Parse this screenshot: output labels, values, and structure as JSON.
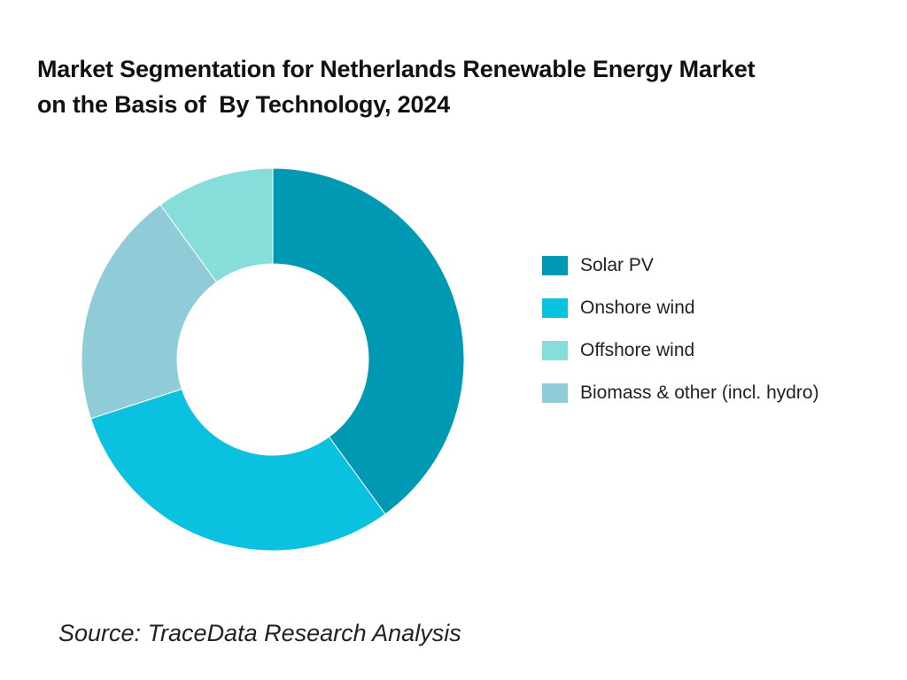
{
  "title_lines": [
    "Market Segmentation for Netherlands Renewable Energy Market",
    "on the Basis of  By Technology, 2024"
  ],
  "source": "Source: TraceData Research Analysis",
  "chart_data": {
    "type": "pie",
    "variant": "donut",
    "title": "Market Segmentation for Netherlands Renewable Energy Market on the Basis of  By Technology, 2024",
    "categories": [
      "Solar PV",
      "Onshore wind",
      "Offshore wind",
      "Biomass & other (incl. hydro)"
    ],
    "slices": [
      {
        "label": "Solar PV",
        "value": 40,
        "color": "#0099B3"
      },
      {
        "label": "Onshore wind",
        "value": 30,
        "color": "#0BC1E0"
      },
      {
        "label": "Biomass & other (incl. hydro)",
        "value": 20,
        "color": "#8FCCD8"
      },
      {
        "label": "Offshore wind",
        "value": 10,
        "color": "#86DDDA"
      }
    ],
    "start_angle_deg": 0,
    "direction": "clockwise",
    "legend_position": "right",
    "legend_order": [
      "Solar PV",
      "Onshore wind",
      "Offshore wind",
      "Biomass & other (incl. hydro)"
    ],
    "colors": {
      "Solar PV": "#0099B3",
      "Onshore wind": "#0BC1E0",
      "Offshore wind": "#86DDDA",
      "Biomass & other (incl. hydro)": "#8FCCD8"
    }
  }
}
